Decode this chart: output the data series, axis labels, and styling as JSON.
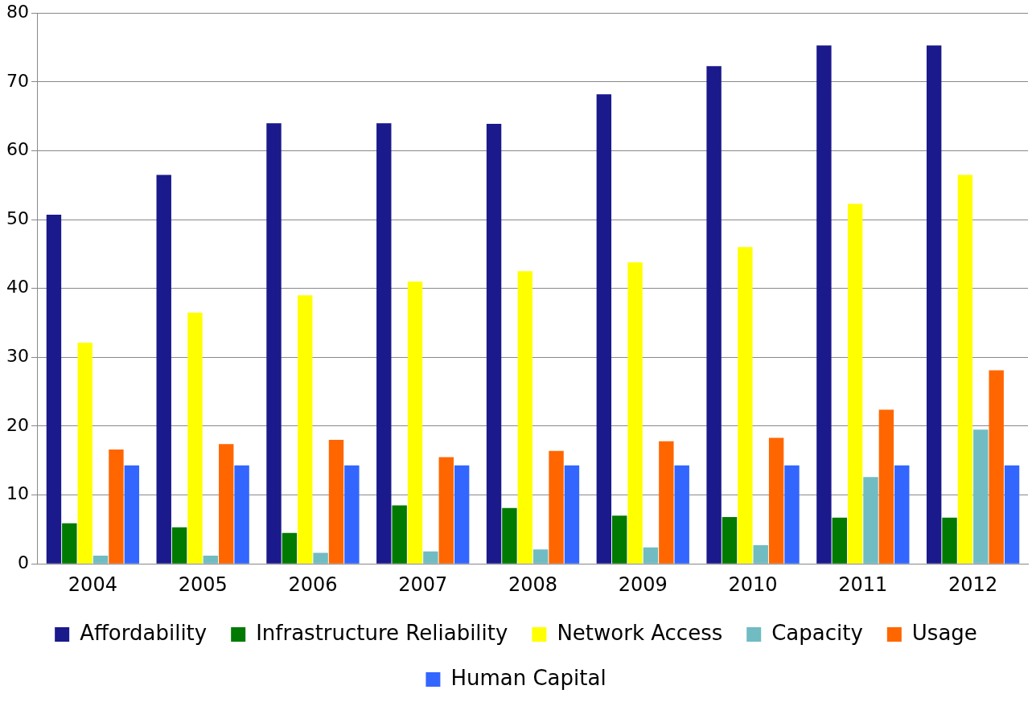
{
  "chart_data": {
    "type": "bar",
    "categories": [
      "2004",
      "2005",
      "2006",
      "2007",
      "2008",
      "2009",
      "2010",
      "2011",
      "2012"
    ],
    "series": [
      {
        "name": "Affordability",
        "color": "#1a1a8c",
        "values": [
          50.7,
          56.5,
          64,
          64,
          63.9,
          68.2,
          72.3,
          75.3,
          75.3
        ]
      },
      {
        "name": "Infrastructure Reliability",
        "color": "#007a00",
        "values": [
          5.9,
          5.3,
          4.5,
          8.5,
          8.1,
          7,
          6.8,
          6.7,
          6.7
        ]
      },
      {
        "name": "Network Access",
        "color": "#ffff00",
        "values": [
          32.1,
          36.5,
          39,
          41,
          42.5,
          43.8,
          46,
          52.3,
          56.5
        ]
      },
      {
        "name": "Capacity",
        "color": "#70bcc2",
        "values": [
          1.2,
          1.2,
          1.6,
          1.8,
          2.1,
          2.4,
          2.7,
          12.6,
          19.5
        ]
      },
      {
        "name": "Usage",
        "color": "#ff6600",
        "values": [
          16.6,
          17.4,
          18,
          15.5,
          16.4,
          17.8,
          18.3,
          22.4,
          28.1
        ]
      },
      {
        "name": "Human Capital",
        "color": "#3366ff",
        "values": [
          14.3,
          14.3,
          14.3,
          14.3,
          14.3,
          14.3,
          14.3,
          14.3,
          14.3
        ]
      }
    ],
    "ylim": [
      0,
      80
    ],
    "yticks": [
      0,
      10,
      20,
      30,
      40,
      50,
      60,
      70,
      80
    ],
    "grid": "y",
    "legend": "bottom"
  }
}
